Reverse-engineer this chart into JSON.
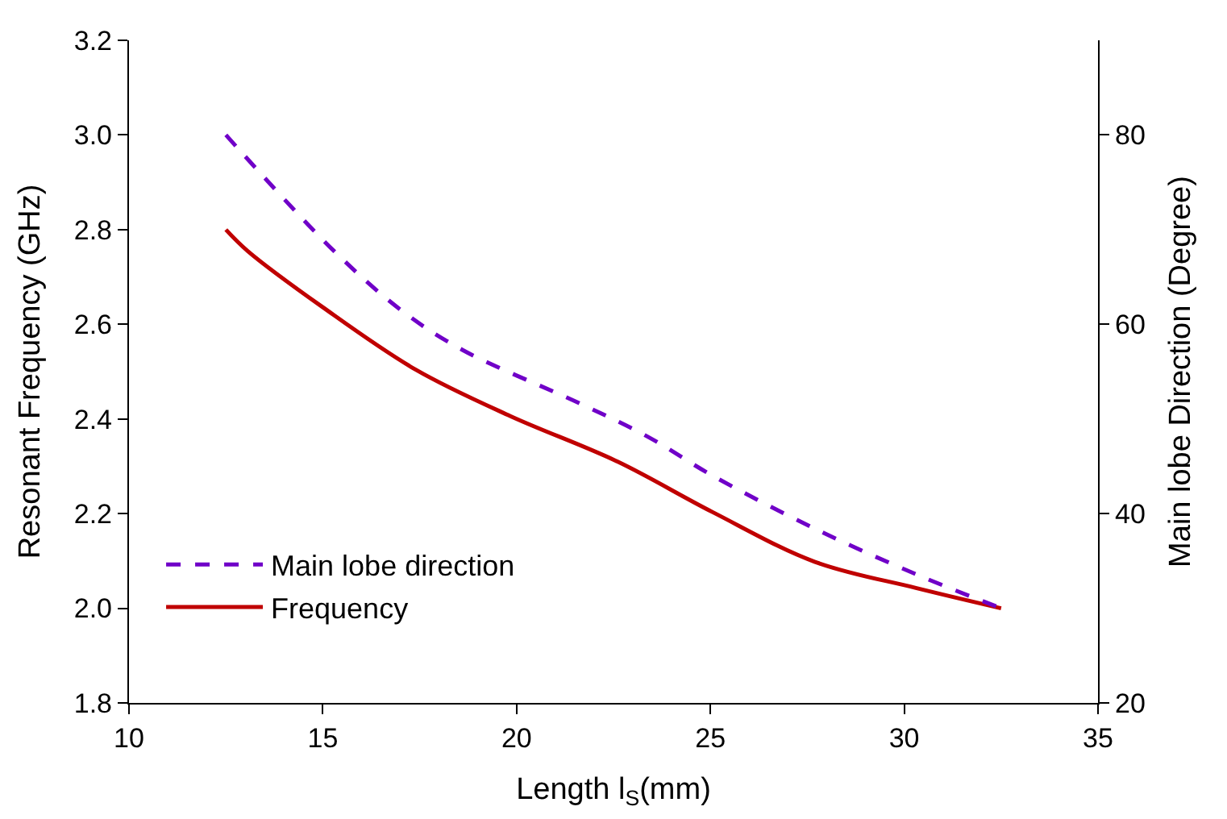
{
  "chart_data": {
    "type": "line",
    "xlabel": "Length l$_{S}$(mm)",
    "ylabel": "Resonant Frequency (GHz)",
    "y2label": "Main lobe Direction (Degree)",
    "xlim": [
      10,
      35
    ],
    "xticks": [
      10,
      15,
      20,
      25,
      30,
      35
    ],
    "ylim": [
      1.8,
      3.2
    ],
    "yticks": [
      1.8,
      {
        "value": 2,
        "label": "2.0"
      },
      2.2,
      2.4,
      2.6,
      2.8,
      {
        "value": 3,
        "label": "3.0"
      },
      3.2
    ],
    "y2lim": [
      20,
      90
    ],
    "y2ticks": [
      20,
      40,
      60,
      80
    ],
    "legend": "bottom left",
    "marker": "none",
    "series": [
      {
        "name": "Main lobe direction",
        "color": "#7000c8",
        "axis": "y2",
        "line_style": "dashed",
        "x": [
          12.5,
          15.3,
          17.05,
          18.6,
          21.6,
          23.35,
          25.06,
          27.7,
          30.3,
          32.5
        ],
        "values": [
          80,
          67.7,
          61.4,
          57.3,
          51.7,
          48.2,
          44.0,
          38.4,
          33.6,
          30
        ]
      },
      {
        "name": "Frequency",
        "color": "#c00000",
        "line_style": "solid",
        "x": [
          12.5,
          13.06,
          15.0,
          17.4,
          19.84,
          22.6,
          25.06,
          27.7,
          30.3,
          32.5
        ],
        "values": [
          2.8,
          2.755,
          2.636,
          2.504,
          2.406,
          2.31,
          2.203,
          2.098,
          2.043,
          2.0
        ]
      }
    ]
  }
}
